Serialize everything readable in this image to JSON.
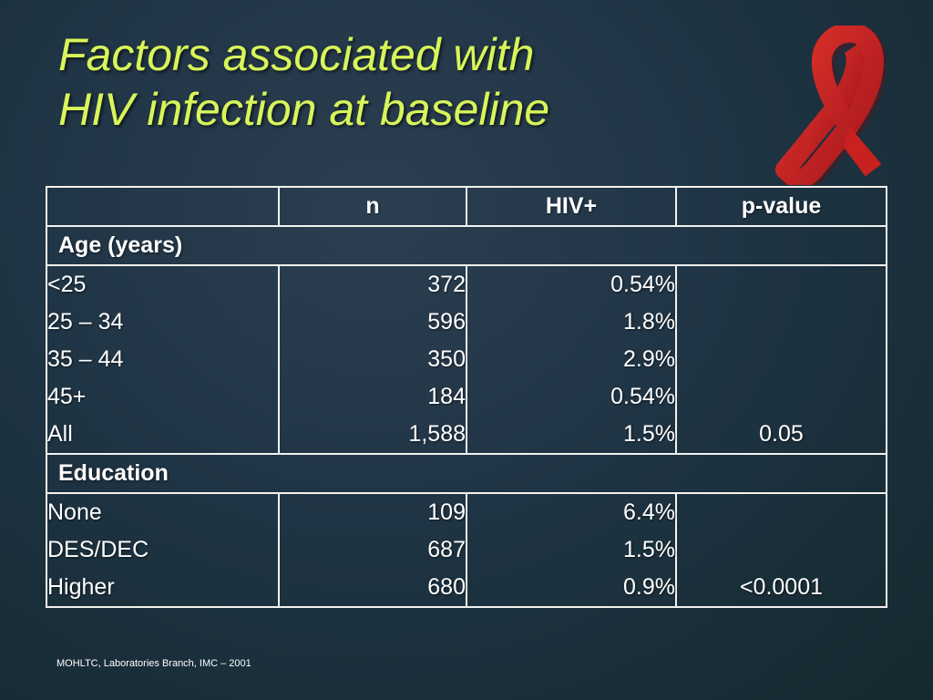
{
  "title": {
    "line1": "Factors associated with",
    "line2": "HIV infection at baseline"
  },
  "ribbon": {
    "icon": "red-ribbon-icon",
    "color": "#c8211f"
  },
  "table": {
    "headers": [
      "",
      "n",
      "HIV+",
      "p-value"
    ],
    "sections": [
      {
        "label": "Age (years)",
        "rows": [
          {
            "label": "<25",
            "n": "372",
            "hiv": "0.54%",
            "p": ""
          },
          {
            "label": "25 – 34",
            "n": "596",
            "hiv": "1.8%",
            "p": ""
          },
          {
            "label": "35 – 44",
            "n": "350",
            "hiv": "2.9%",
            "p": ""
          },
          {
            "label": "45+",
            "n": "184",
            "hiv": "0.54%",
            "p": ""
          },
          {
            "label": "All",
            "n": "1,588",
            "hiv": "1.5%",
            "p": "0.05"
          }
        ]
      },
      {
        "label": "Education",
        "rows": [
          {
            "label": "None",
            "n": "109",
            "hiv": "6.4%",
            "p": ""
          },
          {
            "label": "DES/DEC",
            "n": "687",
            "hiv": "1.5%",
            "p": ""
          },
          {
            "label": "Higher",
            "n": "680",
            "hiv": "0.9%",
            "p": "<0.0001"
          }
        ]
      }
    ]
  },
  "footer": "MOHLTC, Laboratories Branch, IMC – 2001",
  "colors": {
    "title": "#d8f55a",
    "text": "#ffffff",
    "border": "#f2f2ee",
    "background": "#1f3444"
  }
}
